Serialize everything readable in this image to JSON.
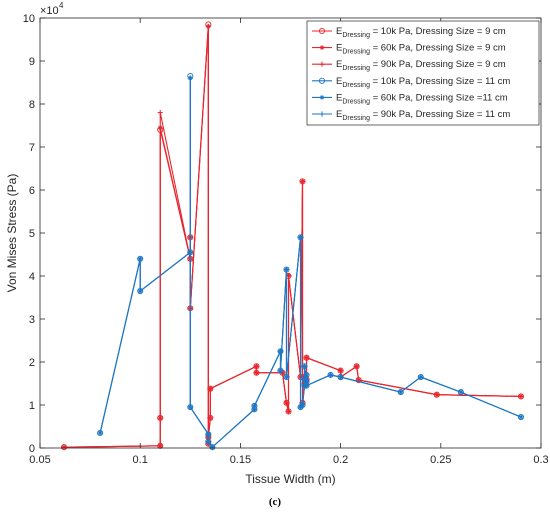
{
  "chart_data": {
    "type": "line",
    "xlabel": "Tissue Width (m)",
    "ylabel": "Von Mises Stress (Pa)",
    "y_exponent_label": "×10",
    "y_exponent": "4",
    "caption": "(c)",
    "xlim": [
      0.05,
      0.3
    ],
    "ylim": [
      0,
      100000
    ],
    "xticks": [
      0.05,
      0.1,
      0.15,
      0.2,
      0.25,
      0.3
    ],
    "xtick_labels": [
      "0.05",
      "0.1",
      "0.15",
      "0.2",
      "0.25",
      "0.3"
    ],
    "yticks": [
      0,
      10000,
      20000,
      30000,
      40000,
      50000,
      60000,
      70000,
      80000,
      90000,
      100000
    ],
    "ytick_labels": [
      "0",
      "1",
      "2",
      "3",
      "4",
      "5",
      "6",
      "7",
      "8",
      "9",
      "10"
    ],
    "grid": false,
    "legend_position": "top-right",
    "colors": {
      "red": "#e8262d",
      "blue": "#1f77c4"
    },
    "series": [
      {
        "name": "E_Dressing = 10k Pa, Dressing Size = 9 cm",
        "legend_main": "E",
        "legend_sub": "Dressing",
        "legend_rest": " = 10k Pa, Dressing Size = 9 cm",
        "color": "red",
        "marker": "circle",
        "x": [
          0.062,
          0.11,
          0.11,
          0.11,
          0.125,
          0.125,
          0.125,
          0.134,
          0.134,
          0.134,
          0.135,
          0.135,
          0.158,
          0.158,
          0.171,
          0.173,
          0.174,
          0.174,
          0.18,
          0.181,
          0.181,
          0.182,
          0.182,
          0.183,
          0.183,
          0.183,
          0.2,
          0.2,
          0.208,
          0.209,
          0.248,
          0.29
        ],
        "y": [
          200,
          500,
          7000,
          74000,
          44000,
          49000,
          32500,
          98500,
          1000,
          2500,
          7000,
          13800,
          19000,
          17500,
          17500,
          10500,
          8500,
          40000,
          16500,
          62000,
          10500,
          15000,
          16500,
          15500,
          16000,
          21000,
          18000,
          16500,
          19000,
          15800,
          12400,
          12000
        ]
      },
      {
        "name": "E_Dressing = 60k Pa, Dressing Size = 9 cm",
        "legend_main": "E",
        "legend_sub": "Dressing",
        "legend_rest": " = 60k Pa, Dressing Size = 9 cm",
        "color": "red",
        "marker": "star",
        "x": [
          0.062,
          0.11,
          0.11,
          0.11,
          0.125,
          0.125,
          0.125,
          0.134,
          0.134,
          0.134,
          0.135,
          0.135,
          0.158,
          0.158,
          0.171,
          0.173,
          0.174,
          0.174,
          0.18,
          0.181,
          0.181,
          0.182,
          0.182,
          0.183,
          0.183,
          0.183,
          0.2,
          0.2,
          0.208,
          0.209,
          0.248,
          0.29
        ],
        "y": [
          200,
          500,
          7000,
          74500,
          44000,
          49000,
          32500,
          98000,
          1000,
          2500,
          7000,
          13800,
          19000,
          17500,
          17500,
          10500,
          8500,
          40200,
          16500,
          62000,
          10500,
          15000,
          16500,
          15500,
          16000,
          21000,
          18000,
          16500,
          19000,
          15800,
          12400,
          12000
        ]
      },
      {
        "name": "E_Dressing = 90k Pa, Dressing Size = 9 cm",
        "legend_main": "E",
        "legend_sub": "Dressing",
        "legend_rest": " = 90k Pa, Dressing Size = 9 cm",
        "color": "red",
        "marker": "plus",
        "x": [
          0.062,
          0.11,
          0.11,
          0.11,
          0.125,
          0.125,
          0.125,
          0.134,
          0.134,
          0.134,
          0.135,
          0.135,
          0.158,
          0.158,
          0.171,
          0.173,
          0.174,
          0.174,
          0.18,
          0.181,
          0.181,
          0.182,
          0.182,
          0.183,
          0.183,
          0.183,
          0.2,
          0.2,
          0.208,
          0.209,
          0.248,
          0.29
        ],
        "y": [
          200,
          500,
          7000,
          78000,
          44000,
          49000,
          32500,
          98000,
          1000,
          2500,
          7000,
          13800,
          19000,
          17500,
          17500,
          10500,
          8500,
          40000,
          16500,
          62000,
          10500,
          15000,
          16500,
          15500,
          16000,
          21000,
          18000,
          16500,
          19000,
          15800,
          12400,
          12000
        ]
      },
      {
        "name": "E_Dressing = 10k Pa, Dressing Size = 11 cm",
        "legend_main": "E",
        "legend_sub": "Dressing",
        "legend_rest": " = 10k Pa, Dressing Size = 11 cm",
        "color": "blue",
        "marker": "circle",
        "x": [
          0.08,
          0.1,
          0.1,
          0.125,
          0.125,
          0.125,
          0.134,
          0.134,
          0.136,
          0.157,
          0.157,
          0.17,
          0.17,
          0.173,
          0.173,
          0.18,
          0.18,
          0.181,
          0.182,
          0.182,
          0.182,
          0.183,
          0.183,
          0.183,
          0.195,
          0.2,
          0.23,
          0.24,
          0.26,
          0.29
        ],
        "y": [
          3500,
          44000,
          36500,
          45500,
          86500,
          9500,
          3200,
          1500,
          200,
          9000,
          9800,
          22500,
          18000,
          41500,
          16500,
          49000,
          9500,
          10000,
          14500,
          16000,
          19000,
          15500,
          17000,
          14500,
          17000,
          16500,
          13000,
          16500,
          13000,
          7200
        ]
      },
      {
        "name": "E_Dressing = 60k Pa, Dressing Size =11 cm",
        "legend_main": "E",
        "legend_sub": "Dressing",
        "legend_rest": " = 60k Pa, Dressing Size =11 cm",
        "color": "blue",
        "marker": "star",
        "x": [
          0.08,
          0.1,
          0.1,
          0.125,
          0.125,
          0.125,
          0.134,
          0.134,
          0.136,
          0.157,
          0.157,
          0.17,
          0.17,
          0.173,
          0.173,
          0.18,
          0.18,
          0.181,
          0.182,
          0.182,
          0.182,
          0.183,
          0.183,
          0.183,
          0.195,
          0.2,
          0.23,
          0.24,
          0.26,
          0.29
        ],
        "y": [
          3500,
          44000,
          36500,
          45500,
          86000,
          9500,
          3200,
          1500,
          200,
          9000,
          9800,
          22500,
          18000,
          41500,
          16500,
          49000,
          9500,
          10000,
          14500,
          16000,
          19000,
          15500,
          17000,
          14500,
          17000,
          16500,
          13000,
          16500,
          13000,
          7200
        ]
      },
      {
        "name": "E_Dressing = 90k Pa, Dressing Size = 11 cm",
        "legend_main": "E",
        "legend_sub": "Dressing",
        "legend_rest": " = 90k Pa, Dressing Size = 11 cm",
        "color": "blue",
        "marker": "plus",
        "x": [
          0.08,
          0.1,
          0.1,
          0.125,
          0.125,
          0.125,
          0.134,
          0.134,
          0.136,
          0.157,
          0.157,
          0.17,
          0.17,
          0.173,
          0.173,
          0.18,
          0.18,
          0.181,
          0.182,
          0.182,
          0.182,
          0.183,
          0.183,
          0.183,
          0.195,
          0.2,
          0.23,
          0.24,
          0.26,
          0.29
        ],
        "y": [
          3500,
          44000,
          36500,
          45500,
          86000,
          9500,
          3200,
          1500,
          200,
          9000,
          9800,
          22500,
          18000,
          41500,
          16500,
          49000,
          9500,
          10000,
          14500,
          16000,
          19000,
          15500,
          17000,
          14500,
          17000,
          16500,
          13000,
          16500,
          13000,
          7200
        ]
      }
    ]
  }
}
